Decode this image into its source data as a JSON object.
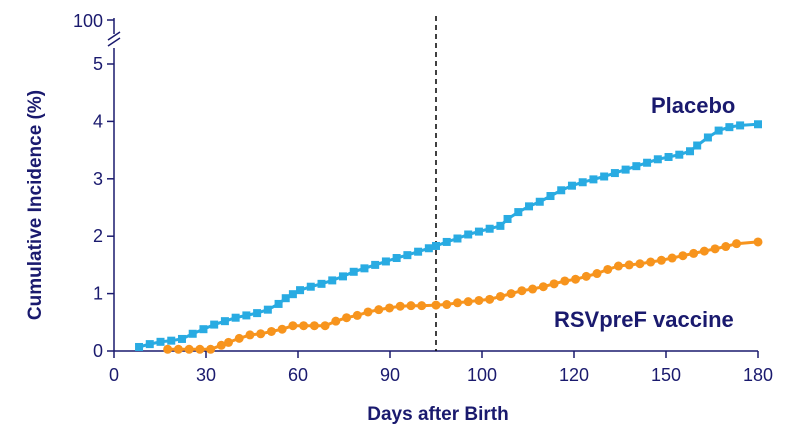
{
  "chart_data": {
    "type": "line",
    "xlabel": "Days after Birth",
    "ylabel": "Cumulative Incidence (%)",
    "x_ticks": [
      "0",
      "30",
      "60",
      "90",
      "100",
      "120",
      "150",
      "180"
    ],
    "y_ticks": [
      "0",
      "1",
      "2",
      "3",
      "4",
      "5"
    ],
    "y_break_tick": "100",
    "xlim": [
      0,
      180
    ],
    "ylim": [
      0,
      5
    ],
    "y_axis_break": true,
    "reference_line_x": 90,
    "grid": false,
    "legend": "inline labels at right",
    "series": [
      {
        "name": "Placebo",
        "color": "#29abe2",
        "marker": "square",
        "x": [
          7,
          10,
          13,
          16,
          19,
          22,
          25,
          28,
          31,
          34,
          37,
          40,
          43,
          46,
          48,
          50,
          52,
          55,
          58,
          61,
          64,
          67,
          70,
          73,
          76,
          79,
          82,
          85,
          88,
          90,
          93,
          96,
          99,
          102,
          105,
          108,
          110,
          113,
          116,
          119,
          122,
          125,
          128,
          131,
          134,
          137,
          140,
          143,
          146,
          149,
          152,
          155,
          158,
          161,
          163,
          166,
          169,
          172,
          175,
          180
        ],
        "y": [
          0.07,
          0.12,
          0.16,
          0.18,
          0.21,
          0.3,
          0.38,
          0.46,
          0.52,
          0.58,
          0.62,
          0.66,
          0.72,
          0.82,
          0.92,
          0.99,
          1.06,
          1.12,
          1.17,
          1.23,
          1.3,
          1.38,
          1.44,
          1.5,
          1.56,
          1.62,
          1.67,
          1.73,
          1.79,
          1.83,
          1.9,
          1.96,
          2.03,
          2.08,
          2.13,
          2.18,
          2.3,
          2.42,
          2.52,
          2.6,
          2.7,
          2.8,
          2.88,
          2.94,
          2.99,
          3.04,
          3.1,
          3.16,
          3.22,
          3.28,
          3.34,
          3.38,
          3.42,
          3.48,
          3.58,
          3.72,
          3.84,
          3.9,
          3.93,
          3.95
        ]
      },
      {
        "name": "RSVpreF vaccine",
        "color": "#f7941d",
        "marker": "circle",
        "x": [
          15,
          18,
          21,
          24,
          27,
          30,
          32,
          35,
          38,
          41,
          44,
          47,
          50,
          53,
          56,
          59,
          62,
          65,
          68,
          71,
          74,
          77,
          80,
          83,
          86,
          90,
          93,
          96,
          99,
          102,
          105,
          108,
          111,
          114,
          117,
          120,
          123,
          126,
          129,
          132,
          135,
          138,
          141,
          144,
          147,
          150,
          153,
          156,
          159,
          162,
          165,
          168,
          171,
          174,
          180
        ],
        "y": [
          0.03,
          0.03,
          0.03,
          0.03,
          0.03,
          0.1,
          0.15,
          0.22,
          0.28,
          0.3,
          0.34,
          0.38,
          0.44,
          0.44,
          0.44,
          0.44,
          0.52,
          0.58,
          0.62,
          0.68,
          0.72,
          0.75,
          0.78,
          0.79,
          0.79,
          0.8,
          0.81,
          0.84,
          0.86,
          0.88,
          0.9,
          0.95,
          1.0,
          1.05,
          1.08,
          1.12,
          1.17,
          1.22,
          1.25,
          1.3,
          1.35,
          1.42,
          1.48,
          1.5,
          1.52,
          1.55,
          1.58,
          1.62,
          1.66,
          1.7,
          1.74,
          1.78,
          1.82,
          1.87,
          1.9
        ]
      }
    ]
  }
}
